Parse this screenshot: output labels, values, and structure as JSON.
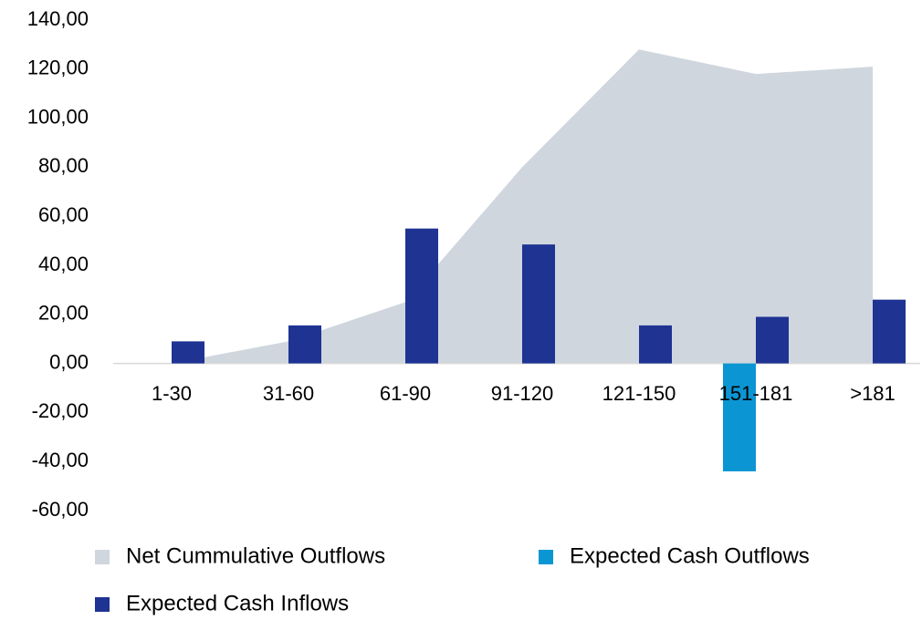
{
  "chart_data": {
    "type": "bar",
    "categories": [
      "1-30",
      "31-60",
      "61-90",
      "91-120",
      "121-150",
      "151-181",
      ">181"
    ],
    "series": [
      {
        "name": "Net Cummulative Outflows",
        "type": "area",
        "color": "#cfd6de",
        "values": [
          0,
          9,
          25,
          80,
          128,
          118,
          121
        ]
      },
      {
        "name": "Expected Cash Outflows",
        "type": "bar",
        "color": "#0b96d3",
        "values": [
          0,
          0,
          0,
          0,
          0,
          -44,
          0
        ]
      },
      {
        "name": "Expected Cash Inflows",
        "type": "bar",
        "color": "#1f3393",
        "values": [
          9,
          15.5,
          55,
          48.5,
          15.5,
          19,
          26
        ]
      }
    ],
    "ylim": [
      -60,
      140
    ],
    "yticks": [
      {
        "value": -60,
        "label": "-60,00"
      },
      {
        "value": -40,
        "label": "-40,00"
      },
      {
        "value": -20,
        "label": "-20,00"
      },
      {
        "value": 0,
        "label": "0,00"
      },
      {
        "value": 20,
        "label": "20,00"
      },
      {
        "value": 40,
        "label": "40,00"
      },
      {
        "value": 60,
        "label": "60,00"
      },
      {
        "value": 80,
        "label": "80,00"
      },
      {
        "value": 100,
        "label": "100,00"
      },
      {
        "value": 120,
        "label": "120,00"
      },
      {
        "value": 140,
        "label": "140,00"
      }
    ],
    "grid": false,
    "legend": "bottom"
  }
}
